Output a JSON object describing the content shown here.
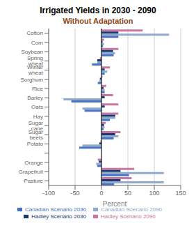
{
  "chart_data": {
    "type": "bar",
    "orientation": "horizontal",
    "title": "Irrigated Yields in 2030 - 2090",
    "subtitle": "Without Adaptation",
    "xlabel": "Percent",
    "categories": [
      "Cotton",
      "Corn",
      "Soybean",
      "Spring wheat",
      "Winter wheat",
      "Sorghum",
      "Rice",
      "Barley",
      "Oats",
      "Hay",
      "Sugar cane",
      "Sugar beets",
      "Potato",
      null,
      "Orange",
      "Grapefruit",
      "Pasture"
    ],
    "series": [
      {
        "name": "Hadley Scenario 2090",
        "color": "#c878a0",
        "values": [
          78,
          5,
          32,
          -3,
          16,
          2,
          9,
          22,
          32,
          32,
          8,
          36,
          -2,
          0,
          -7,
          62,
          57
        ]
      },
      {
        "name": "Hadley Scenario 2030",
        "color": "#1a3a6e",
        "values": [
          32,
          2,
          22,
          -8,
          6,
          -3,
          4,
          6,
          6,
          26,
          5,
          26,
          -4,
          0,
          -5,
          36,
          36
        ]
      },
      {
        "name": "Canadian Scenario 2090",
        "color": "#8faacc",
        "values": [
          128,
          5,
          26,
          -8,
          11,
          -4,
          6,
          -72,
          -36,
          26,
          6,
          32,
          -36,
          0,
          -10,
          118,
          118
        ]
      },
      {
        "name": "Canadian Scenario 2030",
        "color": "#4472c4",
        "values": [
          32,
          3,
          23,
          -18,
          6,
          -7,
          6,
          -57,
          -32,
          16,
          4,
          23,
          -42,
          0,
          -8,
          52,
          24
        ]
      }
    ],
    "xlim": [
      -100,
      150
    ],
    "xticks": [
      -100,
      -50,
      0,
      50,
      100,
      150
    ],
    "grid": true,
    "legend": "bottom"
  }
}
